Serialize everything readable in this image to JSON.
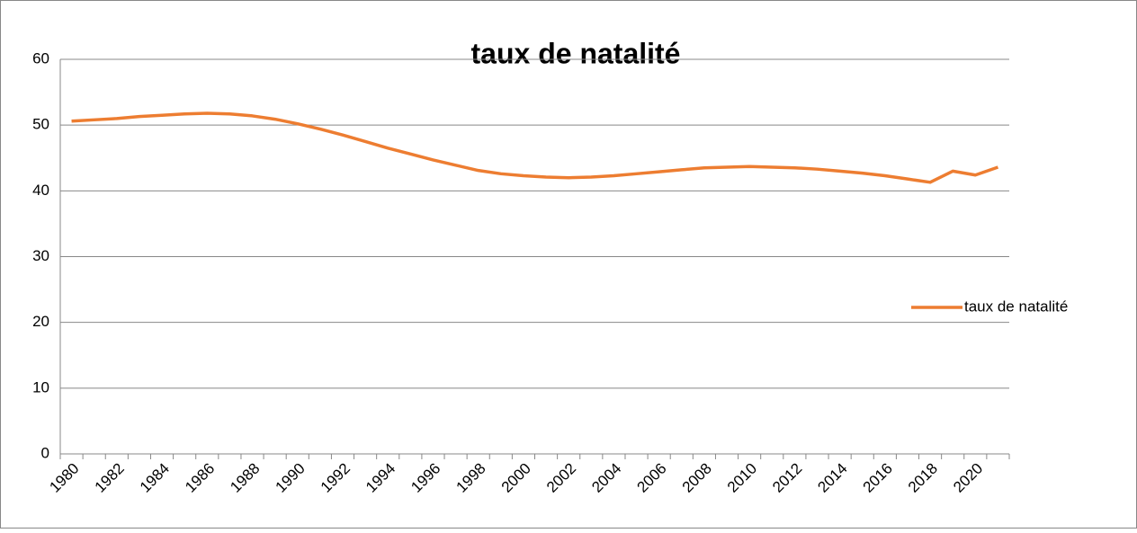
{
  "chart_data": {
    "type": "line",
    "title": "taux de natalité",
    "categories": [
      "1980",
      null,
      "1982",
      null,
      "1984",
      null,
      "1986",
      null,
      "1988",
      null,
      "1990",
      null,
      "1992",
      null,
      "1994",
      null,
      "1996",
      null,
      "1998",
      null,
      "2000",
      null,
      "2002",
      null,
      "2004",
      null,
      "2006",
      null,
      "2008",
      null,
      "2010",
      null,
      "2012",
      null,
      "2014",
      null,
      "2016",
      null,
      "2018",
      null,
      "2020",
      null
    ],
    "series": [
      {
        "name": "taux de natalité",
        "color": "#ed7d31",
        "values": [
          50.6,
          50.8,
          51.0,
          51.3,
          51.5,
          51.7,
          51.8,
          51.7,
          51.4,
          50.9,
          50.2,
          49.4,
          48.5,
          47.5,
          46.5,
          45.6,
          44.7,
          43.9,
          43.1,
          42.6,
          42.3,
          42.1,
          42.0,
          42.1,
          42.3,
          42.6,
          42.9,
          43.2,
          43.5,
          43.6,
          43.7,
          43.6,
          43.5,
          43.3,
          43.0,
          42.7,
          42.3,
          41.8,
          41.3,
          43.0,
          42.4,
          43.6
        ]
      }
    ],
    "ylim": [
      0,
      60
    ],
    "yticks": [
      0,
      10,
      20,
      30,
      40,
      50,
      60
    ],
    "grid": true,
    "legend": "right"
  }
}
